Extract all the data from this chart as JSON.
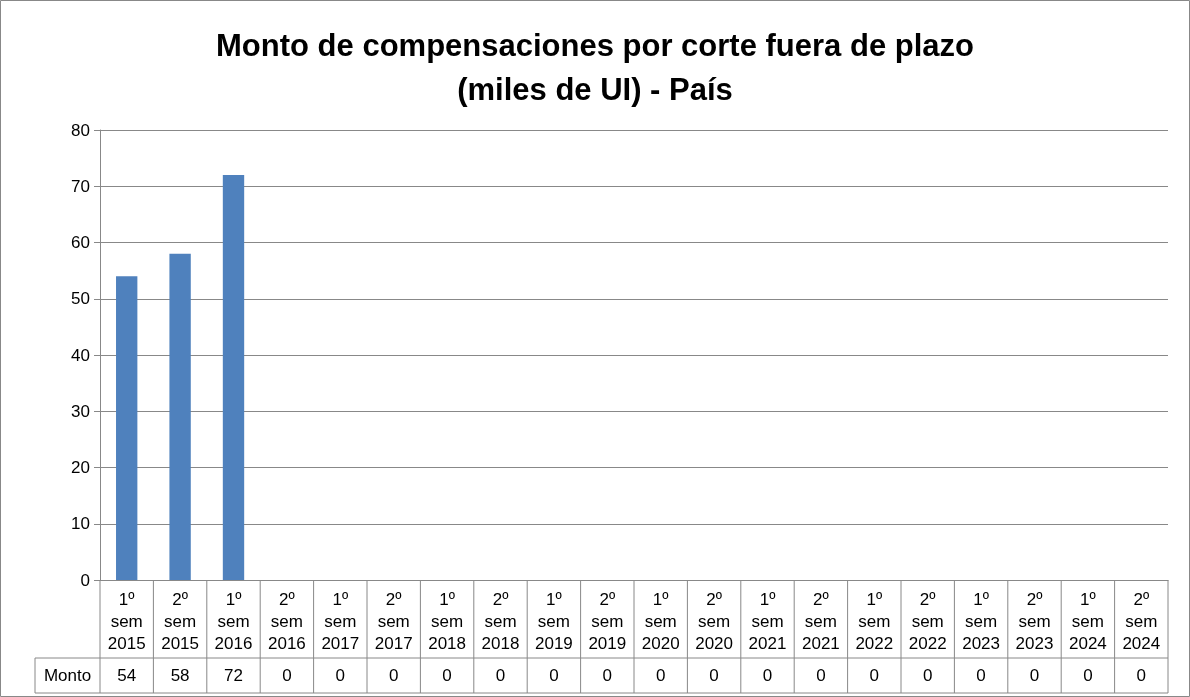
{
  "chart_data": {
    "type": "bar",
    "title": "Monto de compensaciones por corte fuera de plazo\n(miles de UI) - País",
    "categories": [
      "1º sem 2015",
      "2º sem 2015",
      "1º sem 2016",
      "2º sem 2016",
      "1º sem 2017",
      "2º sem 2017",
      "1º sem 2018",
      "2º sem 2018",
      "1º sem 2019",
      "2º sem 2019",
      "1º sem 2020",
      "2º sem 2020",
      "1º sem 2021",
      "2º sem 2021",
      "1º sem 2022",
      "2º sem 2022",
      "1º sem 2023",
      "2º sem 2023",
      "1º sem 2024",
      "2º sem 2024"
    ],
    "series": [
      {
        "name": "Monto",
        "color": "#4f81bd",
        "values": [
          54,
          58,
          72,
          0,
          0,
          0,
          0,
          0,
          0,
          0,
          0,
          0,
          0,
          0,
          0,
          0,
          0,
          0,
          0,
          0
        ]
      }
    ],
    "ylim": [
      0,
      80
    ],
    "yticks": [
      0,
      10,
      20,
      30,
      40,
      50,
      60,
      70,
      80
    ],
    "grid": "y",
    "legend": false,
    "data_labels": true
  }
}
